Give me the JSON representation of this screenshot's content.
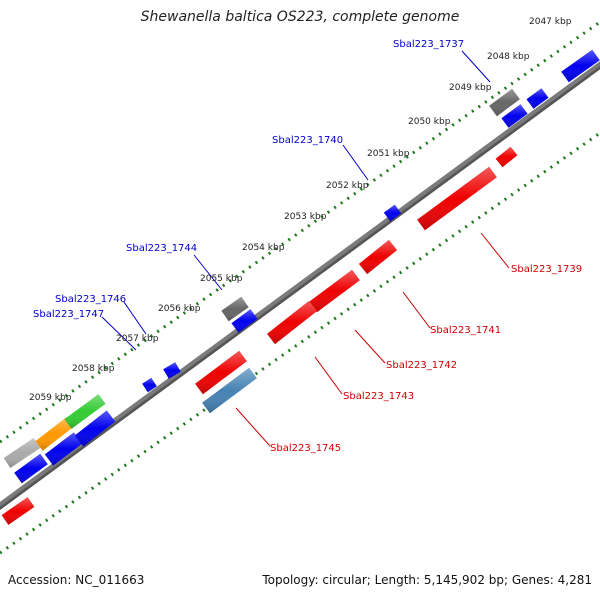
{
  "title": "Shewanella baltica OS223, complete genome",
  "footer": {
    "accession": "Accession: NC_011663",
    "summary": "Topology: circular; Length: 5,145,902 bp; Genes: 4,281"
  },
  "colors": {
    "backbone": "#7a7a7a",
    "ticks": "#1f7a1f",
    "forward_gene": "#0000ee",
    "reverse_gene": "#ee0000",
    "forward_label": "#0000cc",
    "reverse_label": "#cc0000"
  },
  "ticks": [
    {
      "label": "2047 kbp",
      "color": "#1f7a1f"
    },
    {
      "label": "2048 kbp",
      "color": "#1f7a1f"
    },
    {
      "label": "2049 kbp",
      "color": "#1f7a1f"
    },
    {
      "label": "2050 kbp",
      "color": "#1f7a1f"
    },
    {
      "label": "2051 kbp",
      "color": "#1f7a1f"
    },
    {
      "label": "2052 kbp",
      "color": "#1f7a1f"
    },
    {
      "label": "2053 kbp",
      "color": "#1f7a1f"
    },
    {
      "label": "2054 kbp",
      "color": "#1f7a1f"
    },
    {
      "label": "2055 kbp",
      "color": "#1f7a1f"
    },
    {
      "label": "2056 kbp",
      "color": "#1f7a1f"
    },
    {
      "label": "2057 kbp",
      "color": "#1f7a1f"
    },
    {
      "label": "2058 kbp",
      "color": "#1f7a1f"
    },
    {
      "label": "2059 kbp",
      "color": "#1f7a1f"
    }
  ],
  "forward_labels": [
    {
      "text": "Sbal223_1737",
      "color": "#0000cc"
    },
    {
      "text": "Sbal223_1740",
      "color": "#0000cc"
    },
    {
      "text": "Sbal223_1744",
      "color": "#0000cc"
    },
    {
      "text": "Sbal223_1746",
      "color": "#0000cc"
    },
    {
      "text": "Sbal223_1747",
      "color": "#0000cc"
    }
  ],
  "reverse_labels": [
    {
      "text": "Sbal223_1739",
      "color": "#cc0000"
    },
    {
      "text": "Sbal223_1741",
      "color": "#cc0000"
    },
    {
      "text": "Sbal223_1742",
      "color": "#cc0000"
    },
    {
      "text": "Sbal223_1743",
      "color": "#cc0000"
    },
    {
      "text": "Sbal223_1745",
      "color": "#cc0000"
    }
  ],
  "features": [
    {
      "color": "#0000ee"
    },
    {
      "color": "#0000ee"
    },
    {
      "color": "#0000ee"
    },
    {
      "color": "#0000ee"
    },
    {
      "color": "#0000ee"
    },
    {
      "color": "#0000ee"
    },
    {
      "color": "#0000ee"
    },
    {
      "color": "#0000ee"
    },
    {
      "color": "#0000ee"
    },
    {
      "color": "#0000ee"
    },
    {
      "color": "#666666"
    },
    {
      "color": "#666666"
    },
    {
      "color": "#aaaaaa"
    },
    {
      "color": "#ff9900"
    },
    {
      "color": "#33cc33"
    },
    {
      "color": "#ee0000"
    },
    {
      "color": "#ee0000"
    },
    {
      "color": "#ee0000"
    },
    {
      "color": "#ee0000"
    },
    {
      "color": "#ee0000"
    },
    {
      "color": "#ee0000"
    },
    {
      "color": "#ee0000"
    },
    {
      "color": "#ee0000"
    },
    {
      "color": "#4682b4"
    }
  ]
}
